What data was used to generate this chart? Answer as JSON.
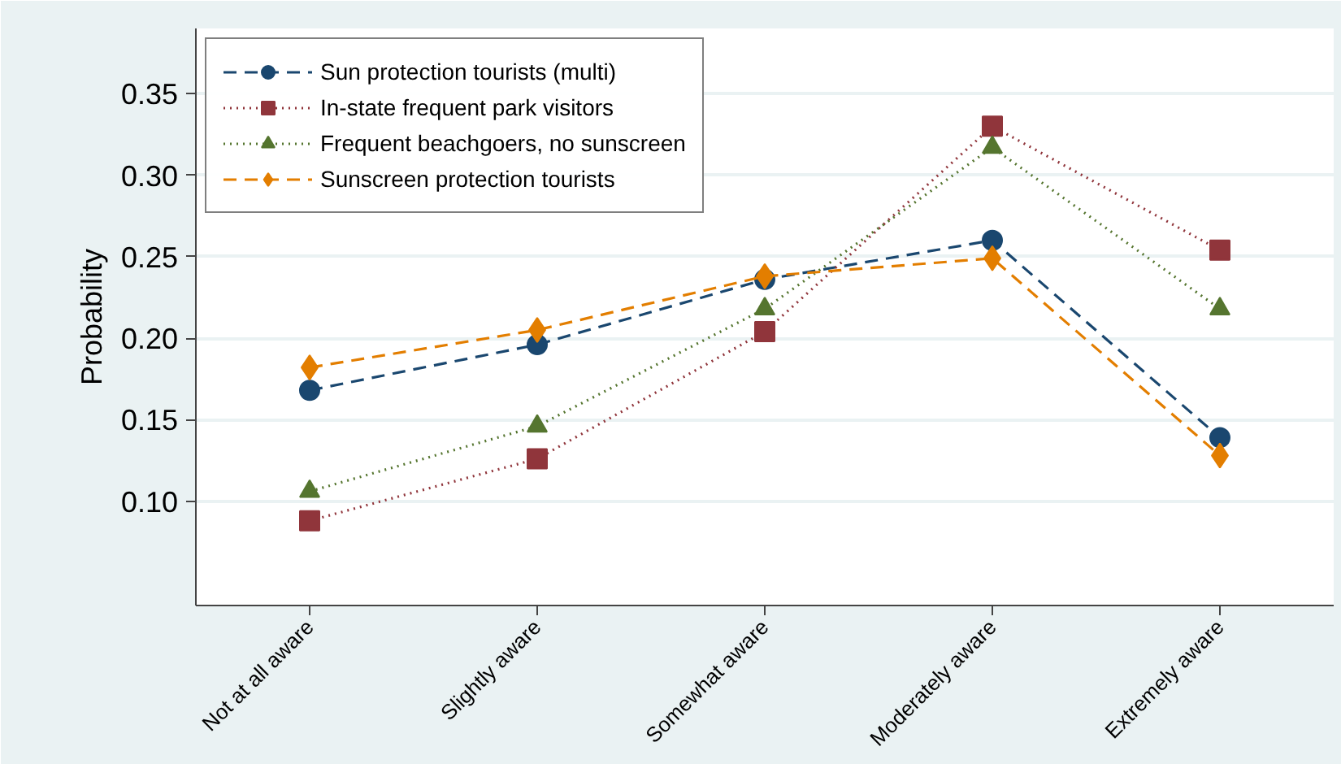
{
  "chart_data": {
    "type": "line",
    "ylabel": "Probability",
    "categories": [
      "Not at all aware",
      "Slightly aware",
      "Somewhat aware",
      "Moderately aware",
      "Extremely aware"
    ],
    "series": [
      {
        "name": "Sun protection tourists (multi)",
        "color": "#1a476f",
        "marker": "circle",
        "line_style": "dashed",
        "values": [
          0.168,
          0.196,
          0.236,
          0.26,
          0.139
        ]
      },
      {
        "name": "In-state frequent park visitors",
        "color": "#90353b",
        "marker": "square",
        "line_style": "dotted",
        "values": [
          0.088,
          0.126,
          0.204,
          0.33,
          0.254
        ]
      },
      {
        "name": "Frequent beachgoers, no sunscreen",
        "color": "#55752f",
        "marker": "triangle",
        "line_style": "dotted",
        "values": [
          0.106,
          0.146,
          0.218,
          0.317,
          0.218
        ]
      },
      {
        "name": "Sunscreen protection tourists",
        "color": "#e37e00",
        "marker": "diamond",
        "line_style": "dashed",
        "values": [
          0.182,
          0.205,
          0.238,
          0.249,
          0.128
        ]
      }
    ],
    "ylim": [
      0.036,
      0.39
    ],
    "yticks": [
      {
        "value": 0.1,
        "label": "0.10"
      },
      {
        "value": 0.15,
        "label": "0.15"
      },
      {
        "value": 0.2,
        "label": "0.20"
      },
      {
        "value": 0.25,
        "label": "0.25"
      },
      {
        "value": 0.3,
        "label": "0.30"
      },
      {
        "value": 0.35,
        "label": "0.35"
      }
    ],
    "grid": "y",
    "legend": "top left"
  }
}
